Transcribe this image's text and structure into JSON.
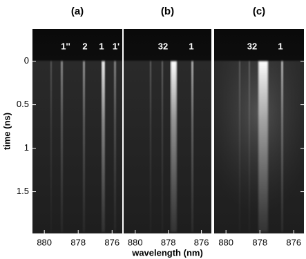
{
  "chart_data": [
    {
      "type": "image",
      "title": "(a)",
      "annotations": [
        "1''",
        "2",
        "1",
        "1'"
      ],
      "xlim": [
        880.7,
        875.4
      ],
      "xticks": [
        880,
        878,
        876
      ],
      "ylabel": "time (ns)",
      "ylim": [
        -0.37,
        1.98
      ],
      "yticks": [
        0,
        0.5,
        1,
        1.5
      ]
    },
    {
      "type": "image",
      "title": "(b)",
      "annotations": [
        "32",
        "1"
      ],
      "xlim": [
        880.7,
        875.4
      ],
      "xticks": [
        880,
        878,
        876
      ],
      "xlabel": "wavelength (nm)"
    },
    {
      "type": "image",
      "title": "(c)",
      "annotations": [
        "32",
        "1"
      ],
      "xlim": [
        880.7,
        875.4
      ],
      "xticks": [
        880,
        878,
        876
      ]
    }
  ]
}
